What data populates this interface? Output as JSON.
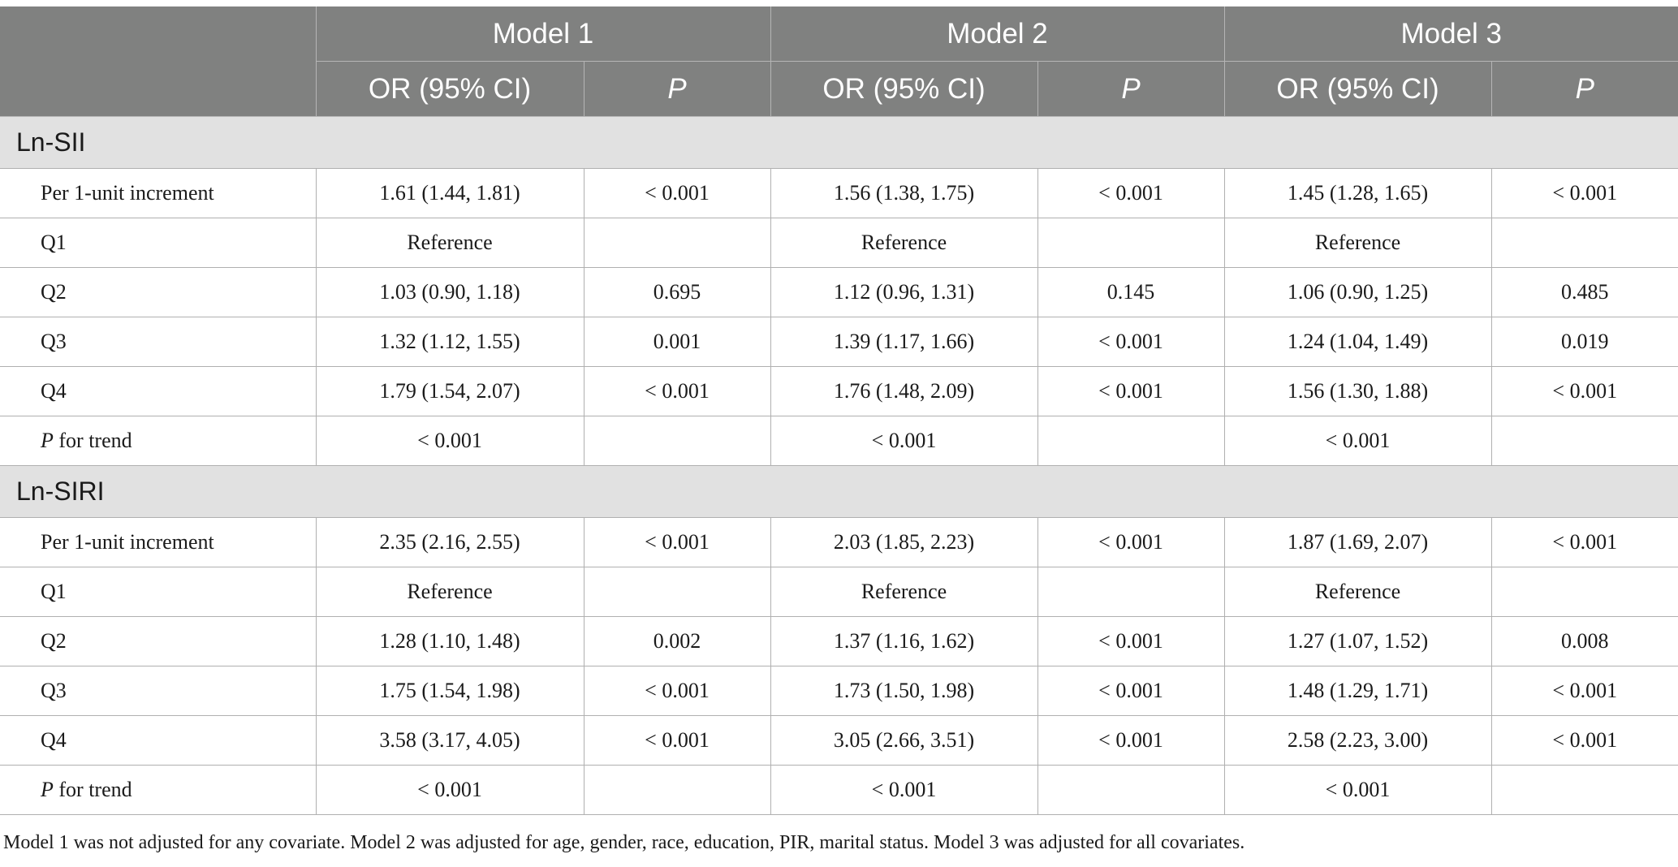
{
  "header": {
    "model1": "Model 1",
    "model2": "Model 2",
    "model3": "Model 3",
    "or_label": "OR (95% CI)",
    "p_label": "P"
  },
  "sections": [
    {
      "title": "Ln-SII",
      "rows": [
        {
          "label": "Per 1-unit increment",
          "label_italic": "",
          "m1_or": "1.61 (1.44, 1.81)",
          "m1_p": "< 0.001",
          "m2_or": "1.56 (1.38, 1.75)",
          "m2_p": "< 0.001",
          "m3_or": "1.45 (1.28, 1.65)",
          "m3_p": "< 0.001"
        },
        {
          "label": "Q1",
          "label_italic": "",
          "m1_or": "Reference",
          "m1_p": "",
          "m2_or": "Reference",
          "m2_p": "",
          "m3_or": "Reference",
          "m3_p": ""
        },
        {
          "label": "Q2",
          "label_italic": "",
          "m1_or": "1.03 (0.90, 1.18)",
          "m1_p": "0.695",
          "m2_or": "1.12 (0.96, 1.31)",
          "m2_p": "0.145",
          "m3_or": "1.06 (0.90, 1.25)",
          "m3_p": "0.485"
        },
        {
          "label": "Q3",
          "label_italic": "",
          "m1_or": "1.32 (1.12, 1.55)",
          "m1_p": "0.001",
          "m2_or": "1.39 (1.17, 1.66)",
          "m2_p": "< 0.001",
          "m3_or": "1.24 (1.04, 1.49)",
          "m3_p": "0.019"
        },
        {
          "label": "Q4",
          "label_italic": "",
          "m1_or": "1.79 (1.54, 2.07)",
          "m1_p": "< 0.001",
          "m2_or": "1.76 (1.48, 2.09)",
          "m2_p": "< 0.001",
          "m3_or": "1.56 (1.30, 1.88)",
          "m3_p": "< 0.001"
        },
        {
          "label": " for trend",
          "label_italic": "P",
          "m1_or": "< 0.001",
          "m1_p": "",
          "m2_or": "< 0.001",
          "m2_p": "",
          "m3_or": "< 0.001",
          "m3_p": ""
        }
      ]
    },
    {
      "title": "Ln-SIRI",
      "rows": [
        {
          "label": "Per 1-unit increment",
          "label_italic": "",
          "m1_or": "2.35 (2.16, 2.55)",
          "m1_p": "< 0.001",
          "m2_or": "2.03 (1.85, 2.23)",
          "m2_p": "< 0.001",
          "m3_or": "1.87 (1.69, 2.07)",
          "m3_p": "< 0.001"
        },
        {
          "label": "Q1",
          "label_italic": "",
          "m1_or": "Reference",
          "m1_p": "",
          "m2_or": "Reference",
          "m2_p": "",
          "m3_or": "Reference",
          "m3_p": ""
        },
        {
          "label": "Q2",
          "label_italic": "",
          "m1_or": "1.28 (1.10, 1.48)",
          "m1_p": "0.002",
          "m2_or": "1.37 (1.16, 1.62)",
          "m2_p": "< 0.001",
          "m3_or": "1.27 (1.07, 1.52)",
          "m3_p": "0.008"
        },
        {
          "label": "Q3",
          "label_italic": "",
          "m1_or": "1.75 (1.54, 1.98)",
          "m1_p": "< 0.001",
          "m2_or": "1.73 (1.50, 1.98)",
          "m2_p": "< 0.001",
          "m3_or": "1.48 (1.29, 1.71)",
          "m3_p": "< 0.001"
        },
        {
          "label": "Q4",
          "label_italic": "",
          "m1_or": "3.58 (3.17, 4.05)",
          "m1_p": "< 0.001",
          "m2_or": "3.05 (2.66, 3.51)",
          "m2_p": "< 0.001",
          "m3_or": "2.58 (2.23, 3.00)",
          "m3_p": "< 0.001"
        },
        {
          "label": " for trend",
          "label_italic": "P",
          "m1_or": "< 0.001",
          "m1_p": "",
          "m2_or": "< 0.001",
          "m2_p": "",
          "m3_or": "< 0.001",
          "m3_p": ""
        }
      ]
    }
  ],
  "footnote": "Model 1 was not adjusted for any covariate. Model 2 was adjusted for age, gender, race, education, PIR, marital status. Model 3 was adjusted for all covariates."
}
